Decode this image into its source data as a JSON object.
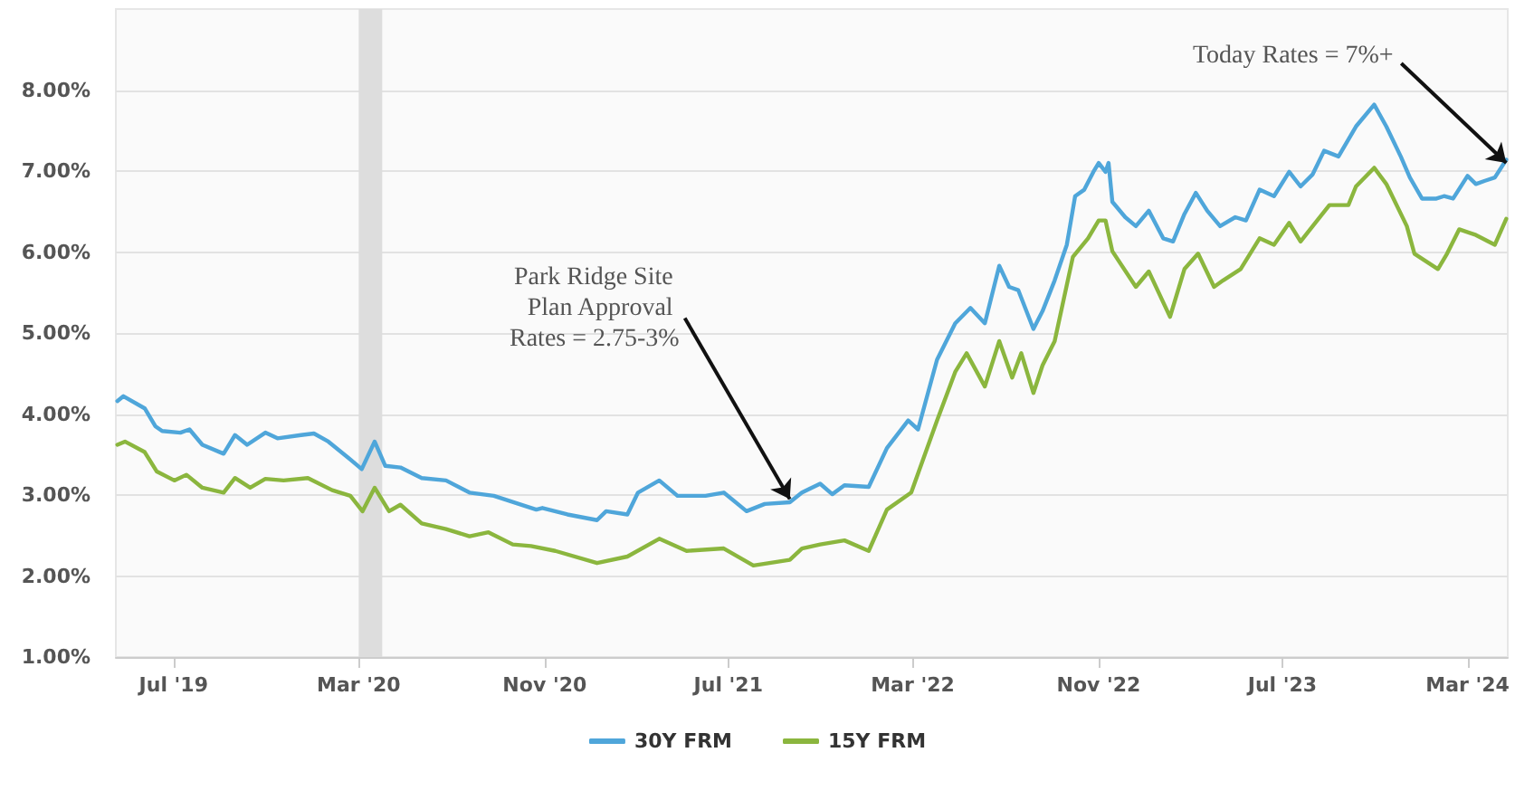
{
  "chart_data": {
    "type": "line",
    "xlim": [
      "2019-04-16",
      "2024-04-23"
    ],
    "xticks": [
      {
        "value": "2019-07-01",
        "label": "Jul '19"
      },
      {
        "value": "2020-03-01",
        "label": "Mar '20"
      },
      {
        "value": "2020-11-01",
        "label": "Nov '20"
      },
      {
        "value": "2021-07-01",
        "label": "Jul '21"
      },
      {
        "value": "2022-03-01",
        "label": "Mar '22"
      },
      {
        "value": "2022-11-01",
        "label": "Nov '22"
      },
      {
        "value": "2023-07-01",
        "label": "Jul '23"
      },
      {
        "value": "2024-03-01",
        "label": "Mar '24"
      }
    ],
    "ylim": [
      1,
      9
    ],
    "yticks": [
      {
        "value": 1,
        "label": "1.00%"
      },
      {
        "value": 2,
        "label": "2.00%"
      },
      {
        "value": 3,
        "label": "3.00%"
      },
      {
        "value": 4,
        "label": "4.00%"
      },
      {
        "value": 5,
        "label": "5.00%"
      },
      {
        "value": 6,
        "label": "6.00%"
      },
      {
        "value": 7,
        "label": "7.00%"
      },
      {
        "value": 8,
        "label": "8.00%"
      }
    ],
    "grid": "y",
    "legend": "bottom",
    "marker": "none",
    "line_style": "solid",
    "bands": [
      {
        "axis": "x",
        "from": "2020-03-01",
        "to": "2020-04-01",
        "color": "#dddddd"
      }
    ],
    "annotations": [
      {
        "text": "Park Ridge Site Plan Approval Rates = 2.75-3%",
        "x": "2021-09-20",
        "y": 2.95
      },
      {
        "text": "Today Rates = 7%+",
        "x": "2024-04-21",
        "y": 7.1
      }
    ],
    "series": [
      {
        "name": "30Y FRM",
        "color": "#4fa6da",
        "x": [
          "2019-04-18",
          "2019-04-26",
          "2019-05-24",
          "2019-06-07",
          "2019-06-16",
          "2019-07-10",
          "2019-07-22",
          "2019-08-08",
          "2019-09-05",
          "2019-09-20",
          "2019-10-06",
          "2019-10-30",
          "2019-11-15",
          "2019-12-16",
          "2020-01-02",
          "2020-01-21",
          "2020-02-15",
          "2020-03-05",
          "2020-03-22",
          "2020-04-05",
          "2020-04-25",
          "2020-05-23",
          "2020-06-24",
          "2020-07-25",
          "2020-08-26",
          "2020-09-28",
          "2020-10-21",
          "2020-10-29",
          "2020-12-01",
          "2021-01-09",
          "2021-01-21",
          "2021-02-18",
          "2021-03-04",
          "2021-04-01",
          "2021-04-25",
          "2021-06-01",
          "2021-06-25",
          "2021-07-25",
          "2021-08-18",
          "2021-09-20",
          "2021-10-06",
          "2021-10-30",
          "2021-11-15",
          "2021-12-01",
          "2022-01-02",
          "2022-01-26",
          "2022-02-23",
          "2022-03-08",
          "2022-04-02",
          "2022-04-26",
          "2022-05-16",
          "2022-06-04",
          "2022-06-23",
          "2022-07-06",
          "2022-07-18",
          "2022-08-07",
          "2022-08-19",
          "2022-09-04",
          "2022-09-20",
          "2022-10-01",
          "2022-10-13",
          "2022-10-25",
          "2022-11-01",
          "2022-11-10",
          "2022-11-14",
          "2022-11-19",
          "2022-12-06",
          "2022-12-20",
          "2023-01-06",
          "2023-01-25",
          "2023-02-07",
          "2023-02-22",
          "2023-03-09",
          "2023-03-24",
          "2023-04-10",
          "2023-04-30",
          "2023-05-14",
          "2023-06-01",
          "2023-06-20",
          "2023-07-10",
          "2023-07-25",
          "2023-08-10",
          "2023-08-25",
          "2023-09-13",
          "2023-10-06",
          "2023-10-30",
          "2023-11-15",
          "2023-12-04",
          "2023-12-16",
          "2024-01-01",
          "2024-01-20",
          "2024-01-30",
          "2024-02-11",
          "2024-03-01",
          "2024-03-12",
          "2024-03-24",
          "2024-04-06",
          "2024-04-21"
        ],
        "values": [
          4.16,
          4.22,
          4.07,
          3.85,
          3.79,
          3.77,
          3.81,
          3.62,
          3.51,
          3.74,
          3.62,
          3.77,
          3.7,
          3.74,
          3.76,
          3.66,
          3.47,
          3.32,
          3.66,
          3.36,
          3.34,
          3.21,
          3.18,
          3.03,
          2.99,
          2.89,
          2.82,
          2.84,
          2.76,
          2.69,
          2.8,
          2.76,
          3.03,
          3.18,
          2.99,
          2.99,
          3.03,
          2.8,
          2.89,
          2.91,
          3.03,
          3.14,
          3.01,
          3.12,
          3.1,
          3.58,
          3.92,
          3.81,
          4.67,
          5.12,
          5.31,
          5.12,
          5.83,
          5.57,
          5.53,
          5.05,
          5.27,
          5.65,
          6.09,
          6.69,
          6.77,
          6.99,
          7.1,
          6.99,
          7.1,
          6.62,
          6.43,
          6.32,
          6.51,
          6.17,
          6.13,
          6.47,
          6.73,
          6.51,
          6.32,
          6.43,
          6.39,
          6.77,
          6.69,
          6.99,
          6.81,
          6.96,
          7.25,
          7.18,
          7.55,
          7.82,
          7.55,
          7.18,
          6.92,
          6.66,
          6.66,
          6.69,
          6.66,
          6.94,
          6.84,
          6.88,
          6.92,
          7.14
        ]
      },
      {
        "name": "15Y FRM",
        "color": "#8bb63e",
        "x": [
          "2019-04-18",
          "2019-04-28",
          "2019-05-24",
          "2019-06-09",
          "2019-07-02",
          "2019-07-18",
          "2019-08-08",
          "2019-09-05",
          "2019-09-20",
          "2019-10-10",
          "2019-10-30",
          "2019-11-23",
          "2019-12-25",
          "2020-01-26",
          "2020-02-19",
          "2020-03-06",
          "2020-03-22",
          "2020-04-10",
          "2020-04-25",
          "2020-05-23",
          "2020-06-24",
          "2020-07-25",
          "2020-08-19",
          "2020-09-20",
          "2020-10-14",
          "2020-11-15",
          "2021-01-09",
          "2021-02-18",
          "2021-04-01",
          "2021-05-07",
          "2021-06-25",
          "2021-08-03",
          "2021-09-20",
          "2021-10-06",
          "2021-10-30",
          "2021-12-01",
          "2022-01-02",
          "2022-01-26",
          "2022-02-27",
          "2022-04-02",
          "2022-04-26",
          "2022-05-11",
          "2022-06-04",
          "2022-06-23",
          "2022-07-10",
          "2022-07-22",
          "2022-08-07",
          "2022-08-19",
          "2022-09-04",
          "2022-09-28",
          "2022-10-18",
          "2022-11-01",
          "2022-11-10",
          "2022-11-19",
          "2022-12-20",
          "2023-01-06",
          "2023-02-03",
          "2023-02-22",
          "2023-03-12",
          "2023-04-02",
          "2023-04-14",
          "2023-05-07",
          "2023-06-01",
          "2023-06-20",
          "2023-07-10",
          "2023-07-25",
          "2023-08-10",
          "2023-09-01",
          "2023-09-26",
          "2023-10-06",
          "2023-10-30",
          "2023-11-15",
          "2023-12-12",
          "2023-12-22",
          "2024-01-22",
          "2024-02-03",
          "2024-02-19",
          "2024-03-12",
          "2024-04-06",
          "2024-04-21"
        ],
        "values": [
          3.62,
          3.66,
          3.53,
          3.29,
          3.18,
          3.25,
          3.09,
          3.03,
          3.21,
          3.09,
          3.2,
          3.18,
          3.21,
          3.06,
          2.99,
          2.8,
          3.09,
          2.8,
          2.88,
          2.65,
          2.58,
          2.49,
          2.54,
          2.39,
          2.37,
          2.31,
          2.16,
          2.24,
          2.46,
          2.31,
          2.34,
          2.13,
          2.2,
          2.34,
          2.39,
          2.44,
          2.31,
          2.82,
          3.03,
          3.92,
          4.52,
          4.75,
          4.34,
          4.9,
          4.45,
          4.75,
          4.26,
          4.6,
          4.9,
          5.94,
          6.17,
          6.39,
          6.39,
          6.01,
          5.57,
          5.76,
          5.2,
          5.79,
          5.98,
          5.57,
          5.65,
          5.79,
          6.17,
          6.09,
          6.36,
          6.13,
          6.32,
          6.58,
          6.58,
          6.81,
          7.04,
          6.84,
          6.32,
          5.98,
          5.79,
          5.98,
          6.28,
          6.21,
          6.09,
          6.41
        ]
      }
    ]
  }
}
